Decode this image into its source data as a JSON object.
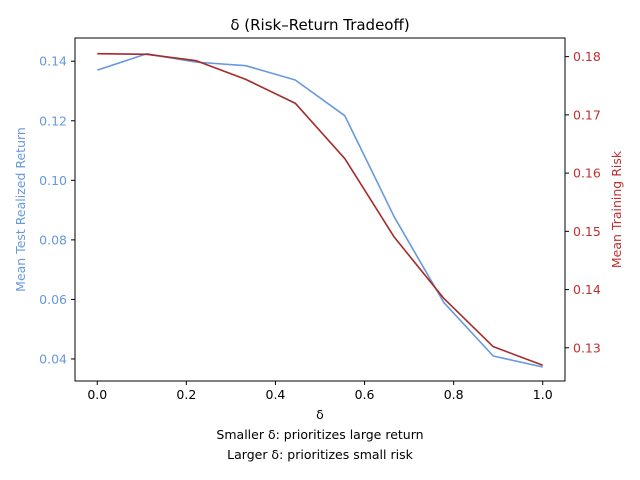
{
  "chart_data": {
    "type": "line",
    "title": "δ (Risk–Return Tradeoff)",
    "xlabel": "δ",
    "xlabel_notes": [
      "Smaller δ: prioritizes large return",
      "Larger δ: prioritizes small risk"
    ],
    "x": [
      0.0,
      0.1111,
      0.2222,
      0.3333,
      0.4444,
      0.5556,
      0.6667,
      0.7778,
      0.8889,
      1.0
    ],
    "xlim": [
      -0.05,
      1.05
    ],
    "xticks": [
      "0.0",
      "0.2",
      "0.4",
      "0.6",
      "0.8",
      "1.0"
    ],
    "series": [
      {
        "axis": "left",
        "color": "#6699dd",
        "values": [
          0.137,
          0.1425,
          0.1397,
          0.1385,
          0.1337,
          0.1217,
          0.0877,
          0.059,
          0.041,
          0.0373
        ]
      },
      {
        "axis": "right",
        "color": "#a52a2a",
        "values": [
          0.1805,
          0.1804,
          0.1793,
          0.1761,
          0.172,
          0.1625,
          0.149,
          0.1385,
          0.1302,
          0.127
        ]
      }
    ],
    "left_axis": {
      "label": "Mean Test Realized Return",
      "color": "#6699dd",
      "ylim": [
        0.0326,
        0.1478
      ],
      "ticks": [
        "0.04",
        "0.06",
        "0.08",
        "0.10",
        "0.12",
        "0.14"
      ]
    },
    "right_axis": {
      "label": "Mean Training Risk",
      "color": "#c03030",
      "ylim": [
        0.1243,
        0.1832
      ],
      "ticks": [
        "0.13",
        "0.14",
        "0.15",
        "0.16",
        "0.17",
        "0.18"
      ]
    },
    "grid": false
  }
}
